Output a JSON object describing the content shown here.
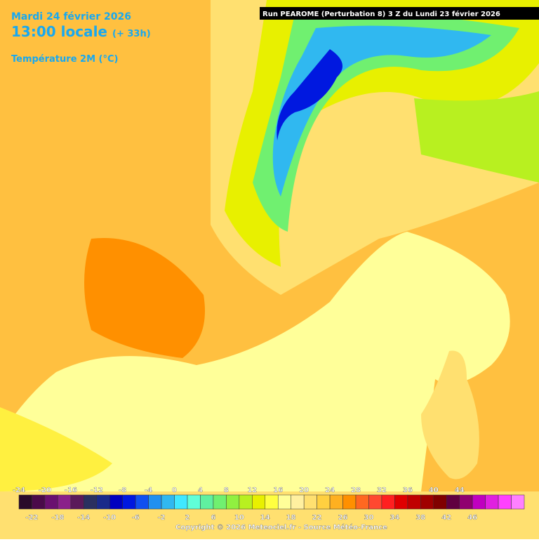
{
  "header": {
    "date": "Mardi 24 février 2026",
    "time": "13:00 locale",
    "lead": "(+ 33h)",
    "field": "Température 2M (°C)",
    "run": "Run PEAROME (Perturbation 8) 3 Z du Lundi 23 février 2026"
  },
  "legend": {
    "ticks": [
      -24,
      -22,
      -20,
      -18,
      -16,
      -14,
      -12,
      -10,
      -8,
      -6,
      -4,
      -2,
      0,
      2,
      4,
      6,
      8,
      10,
      12,
      14,
      16,
      18,
      20,
      22,
      24,
      26,
      28,
      30,
      32,
      34,
      36,
      38,
      40,
      42,
      44,
      46
    ],
    "colors": [
      "#2a0a2a",
      "#4a0a4a",
      "#6a1070",
      "#8a208a",
      "#5a1a5a",
      "#2a3060",
      "#1a2a8a",
      "#0000c0",
      "#0018e0",
      "#1050f0",
      "#2090f0",
      "#30b8f0",
      "#40e8ff",
      "#60ffd8",
      "#60f0a0",
      "#70f070",
      "#90f040",
      "#b8f020",
      "#e8f000",
      "#ffff40",
      "#ffff99",
      "#fff0a0",
      "#ffe070",
      "#ffd040",
      "#ffb020",
      "#ff9000",
      "#ff6820",
      "#ff4830",
      "#ff2020",
      "#e00000",
      "#c00000",
      "#a00000",
      "#800000",
      "#600040",
      "#900070",
      "#c000c0",
      "#e020e0",
      "#ff40ff",
      "#ff80ff"
    ]
  },
  "footer": {
    "copyright": "Copyright © 2026 Meteociel.fr - Source Météo-France"
  }
}
